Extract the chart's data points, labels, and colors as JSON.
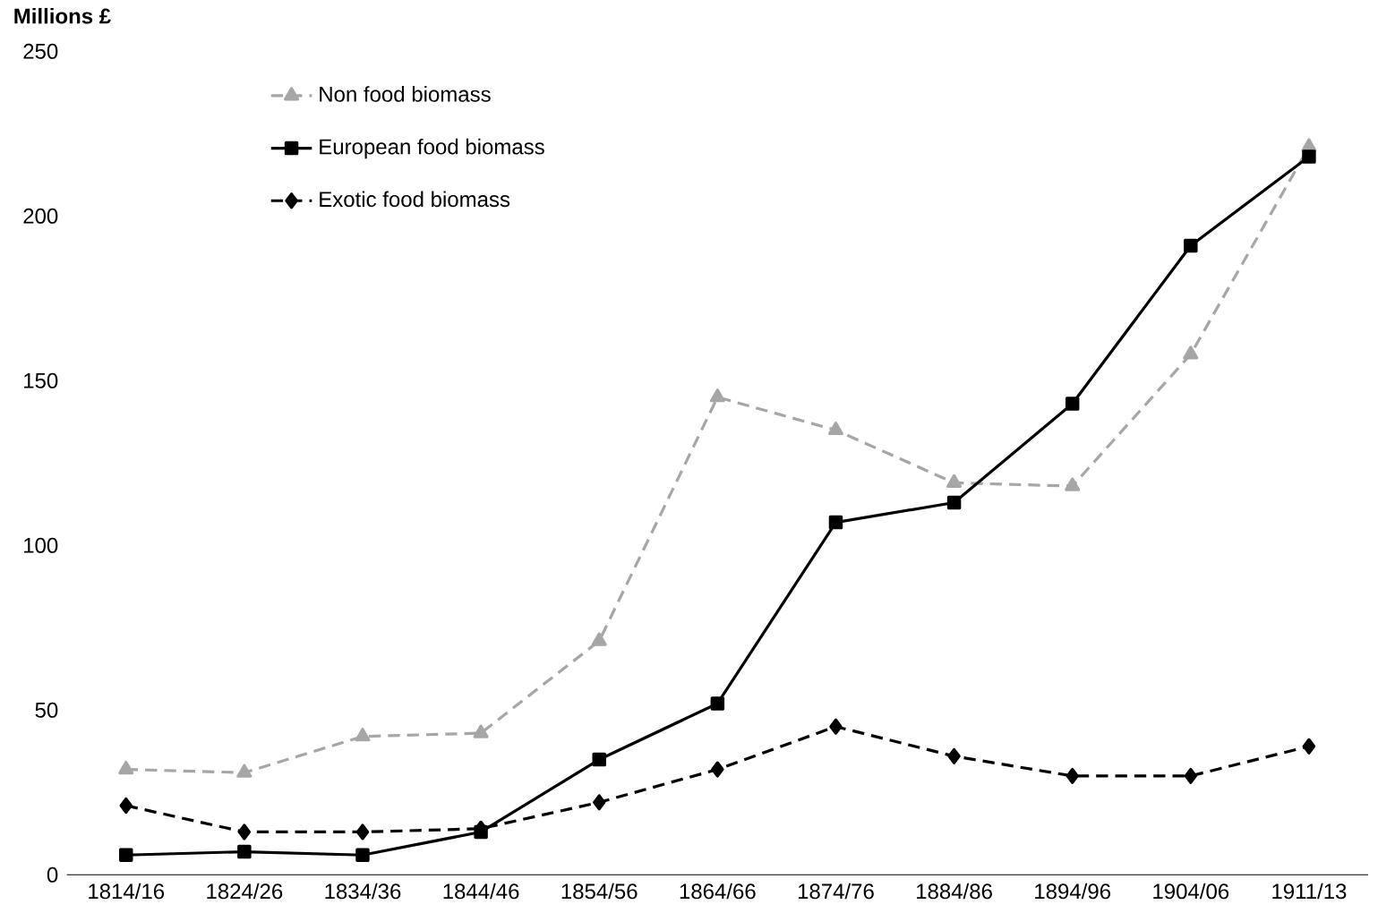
{
  "chart_data": {
    "type": "line",
    "ylabel": "Millions £",
    "categories": [
      "1814/16",
      "1824/26",
      "1834/36",
      "1844/46",
      "1854/56",
      "1864/66",
      "1874/76",
      "1884/86",
      "1894/96",
      "1904/06",
      "1911/13"
    ],
    "ylim": [
      0,
      250
    ],
    "yticks": [
      0,
      50,
      100,
      150,
      200,
      250
    ],
    "grid": false,
    "legend": "top left",
    "series": [
      {
        "name": "Non food biomass",
        "color": "#a6a6a6",
        "marker": "triangle",
        "line_style": "dashed",
        "values": [
          32,
          31,
          42,
          43,
          71,
          145,
          135,
          119,
          118,
          158,
          221
        ]
      },
      {
        "name": "European food biomass",
        "color": "#000000",
        "marker": "square",
        "line_style": "solid",
        "values": [
          6,
          7,
          6,
          13,
          35,
          52,
          107,
          113,
          143,
          191,
          218
        ]
      },
      {
        "name": "Exotic food biomass",
        "color": "#000000",
        "marker": "diamond",
        "line_style": "dashed",
        "values": [
          21,
          13,
          13,
          14,
          22,
          32,
          45,
          36,
          30,
          30,
          39
        ]
      }
    ]
  }
}
